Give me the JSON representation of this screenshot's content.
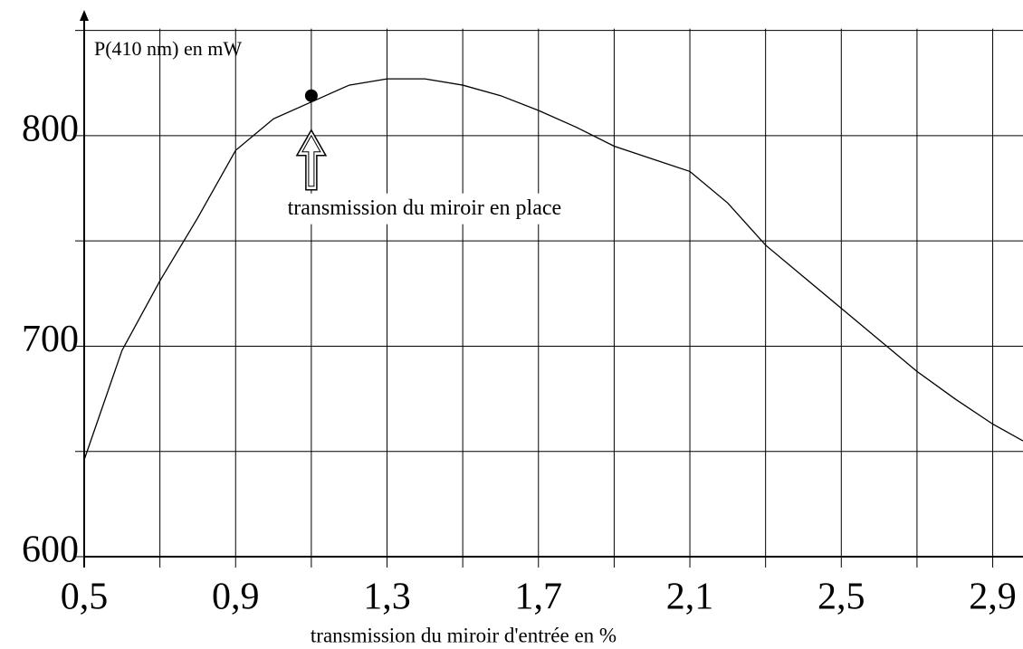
{
  "chart_data": {
    "type": "line",
    "y_label": "P(410 nm) en mW",
    "x_label": "transmission du miroir d'entrée en %",
    "annotation": {
      "text": "transmission du miroir en place",
      "x": 1.1,
      "y": 819
    },
    "x": [
      0.5,
      0.6,
      0.7,
      0.8,
      0.9,
      1.0,
      1.1,
      1.2,
      1.3,
      1.4,
      1.5,
      1.6,
      1.7,
      1.8,
      1.9,
      2.0,
      2.1,
      2.2,
      2.3,
      2.4,
      2.5,
      2.6,
      2.7,
      2.8,
      2.9,
      2.98
    ],
    "series": [
      {
        "name": "P(410 nm)",
        "color": "#000000",
        "values": [
          646,
          698,
          731,
          761,
          793,
          808,
          816,
          824,
          827,
          827,
          824,
          819,
          812,
          804,
          795,
          789,
          783,
          768,
          748,
          733,
          718,
          703,
          688,
          675,
          663,
          655
        ]
      }
    ],
    "xlim": [
      0.5,
      2.98
    ],
    "ylim": [
      600,
      858
    ],
    "xticks": [
      {
        "value": 0.5,
        "label": "0,5"
      },
      {
        "value": 0.9,
        "label": "0,9"
      },
      {
        "value": 1.3,
        "label": "1,3"
      },
      {
        "value": 1.7,
        "label": "1,7"
      },
      {
        "value": 2.1,
        "label": "2,1"
      },
      {
        "value": 2.5,
        "label": "2,5"
      },
      {
        "value": 2.9,
        "label": "2,9"
      }
    ],
    "xminor_ticks": [
      0.7,
      1.1,
      1.5,
      1.9,
      2.3,
      2.7
    ],
    "yticks": [
      600,
      700,
      800
    ],
    "yminor_ticks": [
      650,
      750,
      850
    ],
    "grid": true
  }
}
